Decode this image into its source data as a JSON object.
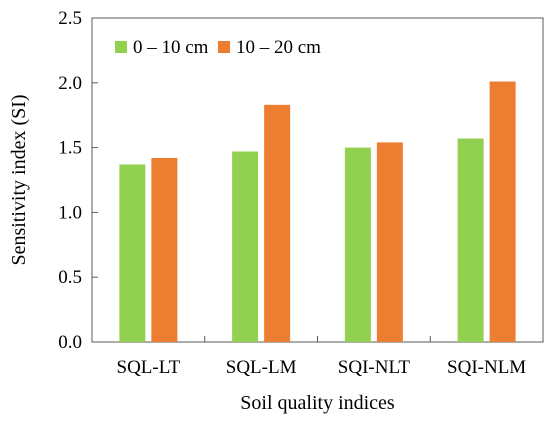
{
  "chart_data": {
    "type": "bar",
    "categories": [
      "SQL-LT",
      "SQL-LM",
      "SQI-NLT",
      "SQI-NLM"
    ],
    "series": [
      {
        "name": "0 – 10 cm",
        "values": [
          1.37,
          1.47,
          1.5,
          1.57
        ],
        "color": "#92d050"
      },
      {
        "name": "10 – 20 cm",
        "values": [
          1.42,
          1.83,
          1.54,
          2.01
        ],
        "color": "#ed7d31"
      }
    ],
    "xlabel": "Soil quality indices",
    "ylabel": "Sensitivity index (SI)",
    "ylim": [
      0,
      2.5
    ],
    "yticks": [
      "0.0",
      "0.5",
      "1.0",
      "1.5",
      "2.0",
      "2.5"
    ],
    "grid": false,
    "legend_position": "top-left"
  }
}
